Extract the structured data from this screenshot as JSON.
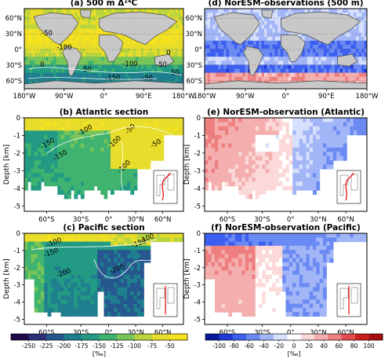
{
  "chart_data": [
    {
      "id": "a",
      "type": "heatmap",
      "kind": "map",
      "title": "(a) 500 m Δ¹⁴C",
      "x_ticks": [
        "180°W",
        "90°W",
        "0°",
        "90°E",
        "180°W"
      ],
      "y_ticks": [
        "60°N",
        "30°N",
        "0°",
        "30°S",
        "60°S"
      ],
      "contour_labels": [
        "-50",
        "-100",
        "0",
        "-50",
        "-100",
        "-150",
        "-50",
        "-50",
        "0",
        "-50"
      ],
      "colormap": "sequential"
    },
    {
      "id": "d",
      "type": "heatmap",
      "kind": "map",
      "title": "(d) NorESM-observations (500 m)",
      "x_ticks": [
        "180°W",
        "90°W",
        "0°",
        "90°E",
        "180°W"
      ],
      "y_ticks": [
        "60°N",
        "30°N",
        "0°",
        "30°S",
        "60°S"
      ],
      "colormap": "diverging"
    },
    {
      "id": "b",
      "type": "heatmap",
      "kind": "section",
      "title": "(b) Atlantic section",
      "ylabel": "Depth [km]",
      "x_ticks": [
        "60°S",
        "30°S",
        "0°",
        "30°N",
        "60°N"
      ],
      "y_ticks": [
        "0",
        "-1",
        "-2",
        "-3",
        "-4",
        "-5"
      ],
      "contour_labels": [
        "-100",
        "-50",
        "-150",
        "-100",
        "-50",
        "-100",
        "-150"
      ],
      "colormap": "sequential"
    },
    {
      "id": "e",
      "type": "heatmap",
      "kind": "section",
      "title": "(e) NorESM-observation (Atlantic)",
      "ylabel": "Depth [km]",
      "x_ticks": [
        "60°S",
        "30°S",
        "0°",
        "30°N",
        "60°N"
      ],
      "y_ticks": [
        "0",
        "-1",
        "-2",
        "-3",
        "-4",
        "-5"
      ],
      "colormap": "diverging"
    },
    {
      "id": "c",
      "type": "heatmap",
      "kind": "section",
      "title": "(c) Pacific section",
      "ylabel": "Depth [km]",
      "x_ticks": [
        "60°S",
        "30°S",
        "0°",
        "30°N",
        "60°N"
      ],
      "y_ticks": [
        "0",
        "-1",
        "-2",
        "-3",
        "-4",
        "-5"
      ],
      "contour_labels": [
        "-100",
        "-150",
        "-150",
        "-100",
        "-200",
        "-200"
      ],
      "colormap": "sequential"
    },
    {
      "id": "f",
      "type": "heatmap",
      "kind": "section",
      "title": "(f) NorESM-observation (Pacific)",
      "ylabel": "Depth [km]",
      "x_ticks": [
        "60°S",
        "30°S",
        "0°",
        "30°N",
        "60°N"
      ],
      "y_ticks": [
        "0",
        "-1",
        "-2",
        "-3",
        "-4",
        "-5"
      ],
      "colormap": "diverging"
    }
  ],
  "colorbars": [
    {
      "id": "left",
      "unit": "[‰]",
      "ticks": [
        "-250",
        "-225",
        "-200",
        "-175",
        "-150",
        "-125",
        "-100",
        "-75",
        "-50"
      ],
      "colors": [
        "#1f0a4a",
        "#2b2f7a",
        "#26578f",
        "#1f7f8e",
        "#239b84",
        "#3fb36f",
        "#78c558",
        "#b8d43e",
        "#e8dd2a",
        "#f6e21f"
      ]
    },
    {
      "id": "right",
      "unit": "[‰]",
      "ticks": [
        "-100",
        "-80",
        "-60",
        "-40",
        "-20",
        "0",
        "20",
        "40",
        "60",
        "80",
        "100"
      ],
      "colors": [
        "#08189c",
        "#1f3ad8",
        "#3c5ff0",
        "#6b8af3",
        "#a2b6f7",
        "#d6dffb",
        "#ffffff",
        "#fbd9d9",
        "#f5aeae",
        "#ee7f7f",
        "#e24c4c",
        "#cc1f1f",
        "#a80c0c"
      ]
    }
  ]
}
